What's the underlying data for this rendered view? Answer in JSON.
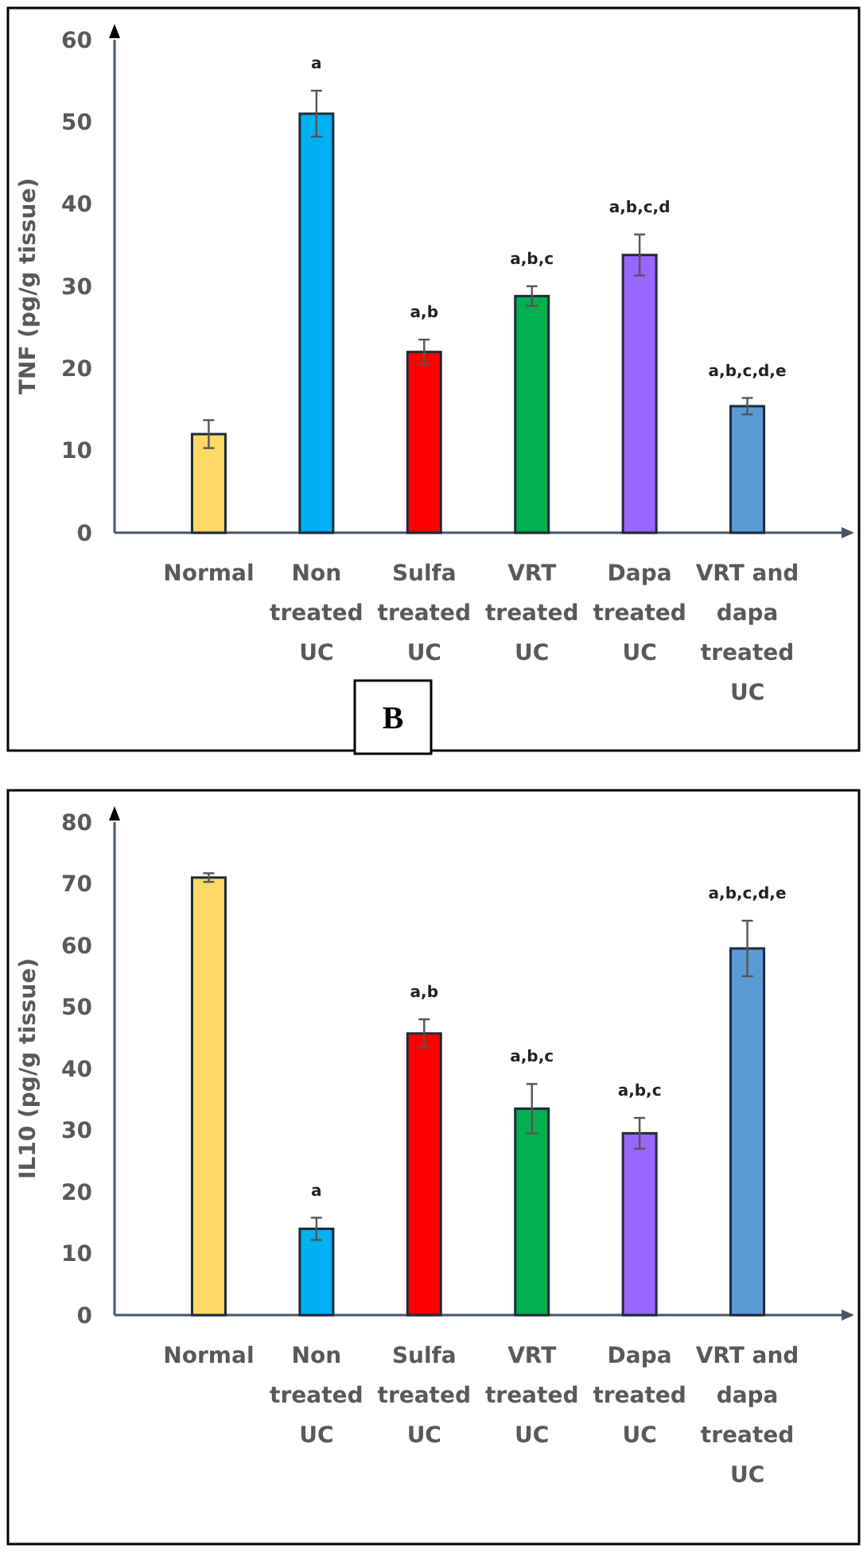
{
  "chart_data": [
    {
      "type": "bar",
      "ylabel": "TNF (pg/g tissue)",
      "categories": [
        "Normal",
        "Non treated UC",
        "Sulfa treated UC",
        "VRT treated UC",
        "Dapa treated UC",
        "VRT and dapa treated UC"
      ],
      "values": [
        12,
        51,
        22,
        28.8,
        33.8,
        15.4
      ],
      "errors": [
        1.7,
        2.8,
        1.5,
        1.2,
        2.5,
        1
      ],
      "colors": [
        "#ffd966",
        "#00b0f0",
        "#ff0000",
        "#00b050",
        "#9966ff",
        "#5b9bd5"
      ],
      "ylim": [
        0,
        60
      ],
      "yticks": [
        0,
        10,
        20,
        30,
        40,
        50,
        60
      ],
      "grid": false,
      "value_labels": [
        null,
        "a",
        "a,b",
        "a,b,c",
        "a,b,c,d",
        "a,b,c,d,e"
      ],
      "annotations": [
        "B"
      ]
    },
    {
      "type": "bar",
      "ylabel": "IL10 (pg/g tissue)",
      "categories": [
        "Normal",
        "Non treated UC",
        "Sulfa treated UC",
        "VRT treated UC",
        "Dapa treated UC",
        "VRT and dapa treated UC"
      ],
      "values": [
        71,
        14,
        45.7,
        33.5,
        29.5,
        59.5
      ],
      "errors": [
        0.7,
        1.8,
        2.3,
        4,
        2.5,
        4.5
      ],
      "colors": [
        "#ffd966",
        "#00b0f0",
        "#ff0000",
        "#00b050",
        "#9966ff",
        "#5b9bd5"
      ],
      "ylim": [
        0,
        80
      ],
      "yticks": [
        0,
        10,
        20,
        30,
        40,
        50,
        60,
        70,
        80
      ],
      "grid": false,
      "value_labels": [
        null,
        "a",
        "a,b",
        "a,b,c",
        "a,b,c",
        "a,b,c,d,e"
      ]
    }
  ]
}
